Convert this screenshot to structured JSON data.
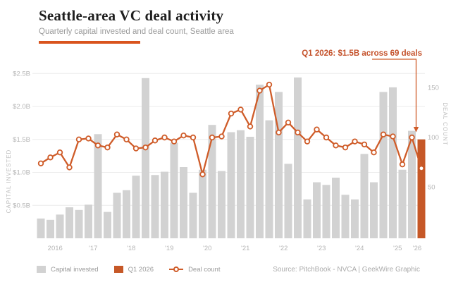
{
  "header": {
    "title": "Seattle-area VC deal activity",
    "subtitle": "Quarterly capital invested and deal count, Seattle area"
  },
  "annotation": {
    "text": "Q1 2026: $1.5B across 69 deals"
  },
  "legend": {
    "capital_label": "Capital invested",
    "highlight_label": "Q1 2026",
    "line_label": "Deal count"
  },
  "source": "Source: PitchBook - NVCA | GeekWire Graphic",
  "palette": {
    "bar_gray": "#d2d2d2",
    "bar_highlight": "#c65827",
    "line_orange": "#cf5c29",
    "annotation_orange": "#c4512a",
    "rule_orange": "#d9541e",
    "grid": "#ebebeb",
    "tick_text": "#b5b5b5",
    "axis_title_text": "#bdbdbd"
  },
  "chart_data": {
    "type": "bar+line",
    "title": "Seattle-area VC deal activity",
    "subtitle": "Quarterly capital invested and deal count, Seattle area",
    "categories": [
      "2016 Q1",
      "2016 Q2",
      "2016 Q3",
      "2016 Q4",
      "2017 Q1",
      "2017 Q2",
      "2017 Q3",
      "2017 Q4",
      "2018 Q1",
      "2018 Q2",
      "2018 Q3",
      "2018 Q4",
      "2019 Q1",
      "2019 Q2",
      "2019 Q3",
      "2019 Q4",
      "2020 Q1",
      "2020 Q2",
      "2020 Q3",
      "2020 Q4",
      "2021 Q1",
      "2021 Q2",
      "2021 Q3",
      "2021 Q4",
      "2022 Q1",
      "2022 Q2",
      "2022 Q3",
      "2022 Q4",
      "2023 Q1",
      "2023 Q2",
      "2023 Q3",
      "2023 Q4",
      "2024 Q1",
      "2024 Q2",
      "2024 Q3",
      "2024 Q4",
      "2025 Q1",
      "2025 Q2",
      "2025 Q3",
      "2025 Q4",
      "2026 Q1"
    ],
    "series": [
      {
        "name": "Capital invested ($B)",
        "type": "bar",
        "values": [
          0.3,
          0.28,
          0.36,
          0.47,
          0.43,
          0.51,
          1.58,
          0.4,
          0.69,
          0.73,
          0.95,
          2.43,
          0.96,
          1.01,
          1.45,
          1.08,
          0.69,
          1.04,
          1.72,
          1.02,
          1.61,
          1.64,
          1.54,
          2.33,
          1.79,
          2.22,
          1.13,
          2.44,
          0.59,
          0.85,
          0.81,
          0.92,
          0.66,
          0.59,
          1.28,
          0.85,
          2.22,
          2.29,
          1.04,
          1.63,
          1.5
        ]
      },
      {
        "name": "Deal count",
        "type": "line",
        "values": [
          74,
          80,
          85,
          70,
          98,
          99,
          92,
          90,
          103,
          98,
          89,
          90,
          97,
          100,
          96,
          102,
          100,
          63,
          100,
          101,
          124,
          128,
          111,
          147,
          153,
          105,
          115,
          105,
          96,
          108,
          100,
          92,
          90,
          96,
          93,
          85,
          103,
          101,
          73,
          100,
          69
        ]
      }
    ],
    "highlight_index": 40,
    "highlight_note": "Q1 2026: $1.5B across 69 deals",
    "x_axis": {
      "labels": [
        "2016",
        "'17",
        "'18",
        "'19",
        "'20",
        "'21",
        "'22",
        "'23",
        "'24",
        "'25",
        "'26"
      ]
    },
    "y_left": {
      "title": "CAPITAL INVESTED",
      "range": [
        0,
        2.5
      ],
      "ticks": [
        {
          "v": 0.5,
          "label": "$0.5B"
        },
        {
          "v": 1.0,
          "label": "$1.0B"
        },
        {
          "v": 1.5,
          "label": "$1.5B"
        },
        {
          "v": 2.0,
          "label": "$2.0B"
        },
        {
          "v": 2.5,
          "label": "$2.5B"
        }
      ]
    },
    "y_right": {
      "title": "DEAL COUNT",
      "range": [
        0,
        170
      ],
      "ticks": [
        {
          "v": 50,
          "label": "50"
        },
        {
          "v": 100,
          "label": "100"
        },
        {
          "v": 150,
          "label": "150"
        }
      ]
    },
    "grid": true,
    "legend_position": "bottom-left"
  }
}
